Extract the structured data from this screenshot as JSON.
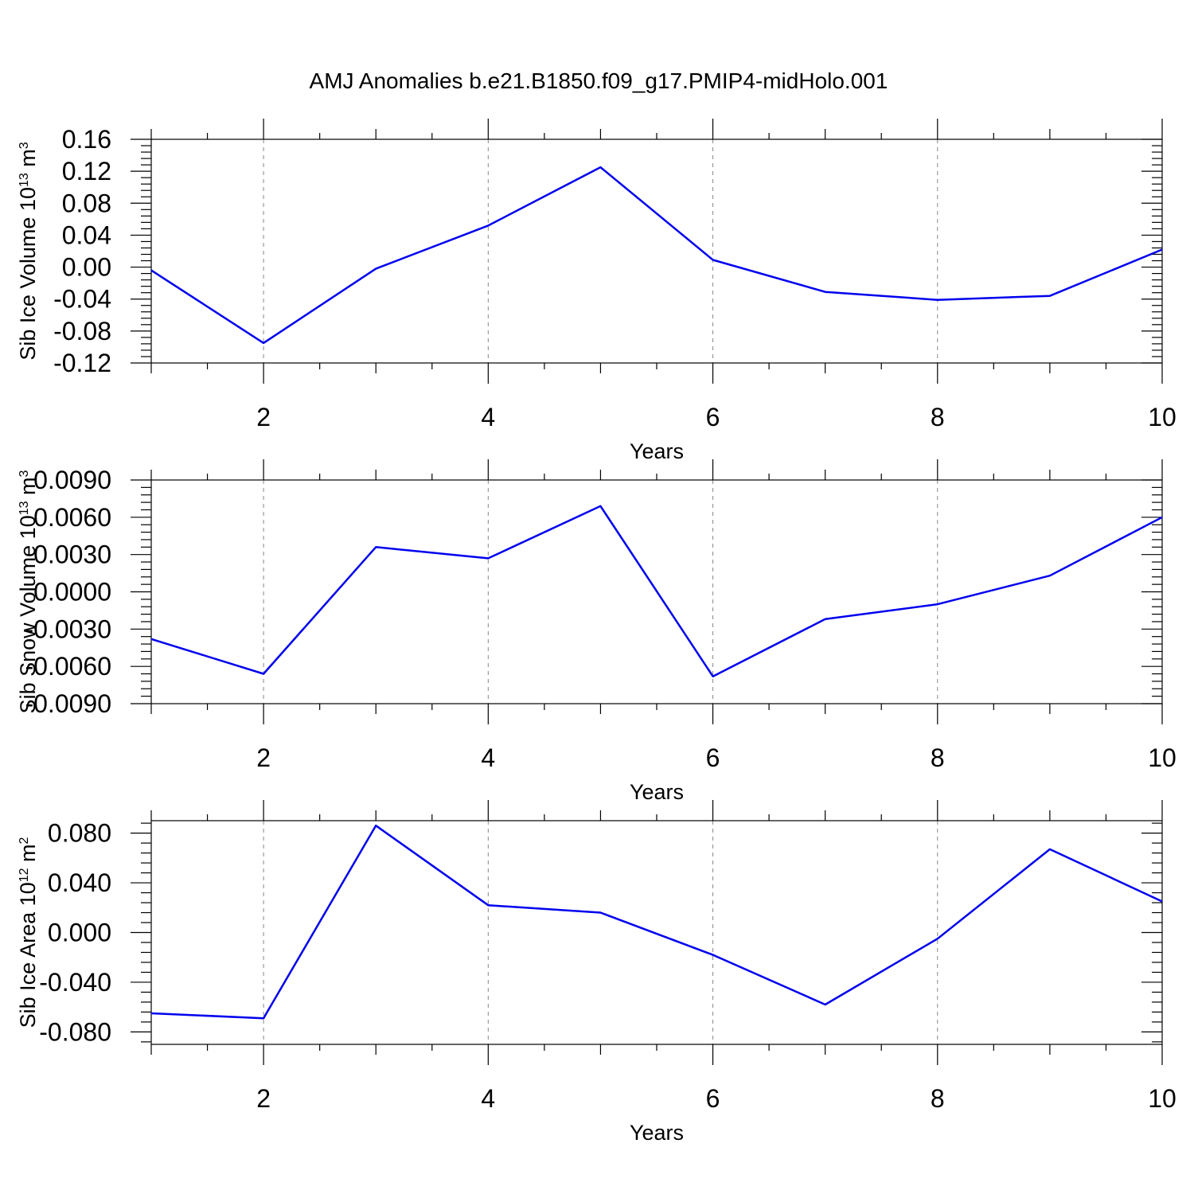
{
  "figure": {
    "title": "AMJ Anomalies b.e21.B1850.f09_g17.PMIP4-midHolo.001"
  },
  "chart_data": [
    {
      "type": "line",
      "xlabel": "Years",
      "ylabel": {
        "base": "Sib Ice Volume 10",
        "exp": "13",
        "unit": " m",
        "unit_exp": "3"
      },
      "x": [
        1,
        2,
        3,
        4,
        5,
        6,
        7,
        8,
        9,
        10
      ],
      "xlim": [
        1,
        10
      ],
      "xticks": [
        2,
        4,
        6,
        8,
        10
      ],
      "xtick_labels": [
        "2",
        "4",
        "6",
        "8",
        "10"
      ],
      "values": [
        -0.004,
        -0.095,
        -0.002,
        0.052,
        0.125,
        0.009,
        -0.031,
        -0.041,
        -0.036,
        0.022
      ],
      "ylim": [
        -0.12,
        0.16
      ],
      "yticks": [
        -0.12,
        -0.08,
        -0.04,
        0.0,
        0.04,
        0.08,
        0.12,
        0.16
      ],
      "ytick_labels": [
        "-0.12",
        "-0.08",
        "-0.04",
        "0.00",
        "0.04",
        "0.08",
        "0.12",
        "0.16"
      ],
      "line_color": "#0000ee",
      "grid": "vertical dashed at major x ticks"
    },
    {
      "type": "line",
      "xlabel": "Years",
      "ylabel": {
        "base": "Sib Snow Volume 10",
        "exp": "13",
        "unit": " m",
        "unit_exp": "3"
      },
      "x": [
        1,
        2,
        3,
        4,
        5,
        6,
        7,
        8,
        9,
        10
      ],
      "xlim": [
        1,
        10
      ],
      "xticks": [
        2,
        4,
        6,
        8,
        10
      ],
      "xtick_labels": [
        "2",
        "4",
        "6",
        "8",
        "10"
      ],
      "values": [
        -0.0038,
        -0.0066,
        0.0036,
        0.0027,
        0.0069,
        -0.0068,
        -0.0022,
        -0.001,
        0.0013,
        0.006
      ],
      "ylim": [
        -0.009,
        0.009
      ],
      "yticks": [
        -0.009,
        -0.006,
        -0.003,
        0.0,
        0.003,
        0.006,
        0.009
      ],
      "ytick_labels": [
        "-0.0090",
        "-0.0060",
        "-0.0030",
        "0.0000",
        "0.0030",
        "0.0060",
        "0.0090"
      ],
      "line_color": "#0000ee",
      "grid": "vertical dashed at major x ticks"
    },
    {
      "type": "line",
      "xlabel": "Years",
      "ylabel": {
        "base": "Sib Ice Area 10",
        "exp": "12",
        "unit": " m",
        "unit_exp": "2"
      },
      "x": [
        1,
        2,
        3,
        4,
        5,
        6,
        7,
        8,
        9,
        10
      ],
      "xlim": [
        1,
        10
      ],
      "xticks": [
        2,
        4,
        6,
        8,
        10
      ],
      "xtick_labels": [
        "2",
        "4",
        "6",
        "8",
        "10"
      ],
      "values": [
        -0.065,
        -0.069,
        0.086,
        0.022,
        0.016,
        -0.018,
        -0.058,
        -0.005,
        0.067,
        0.025
      ],
      "ylim": [
        -0.09,
        0.09
      ],
      "yticks": [
        -0.08,
        -0.04,
        0.0,
        0.04,
        0.08
      ],
      "ytick_labels": [
        "-0.080",
        "-0.040",
        "0.000",
        "0.040",
        "0.080"
      ],
      "line_color": "#0000ee",
      "grid": "vertical dashed at major x ticks"
    }
  ]
}
